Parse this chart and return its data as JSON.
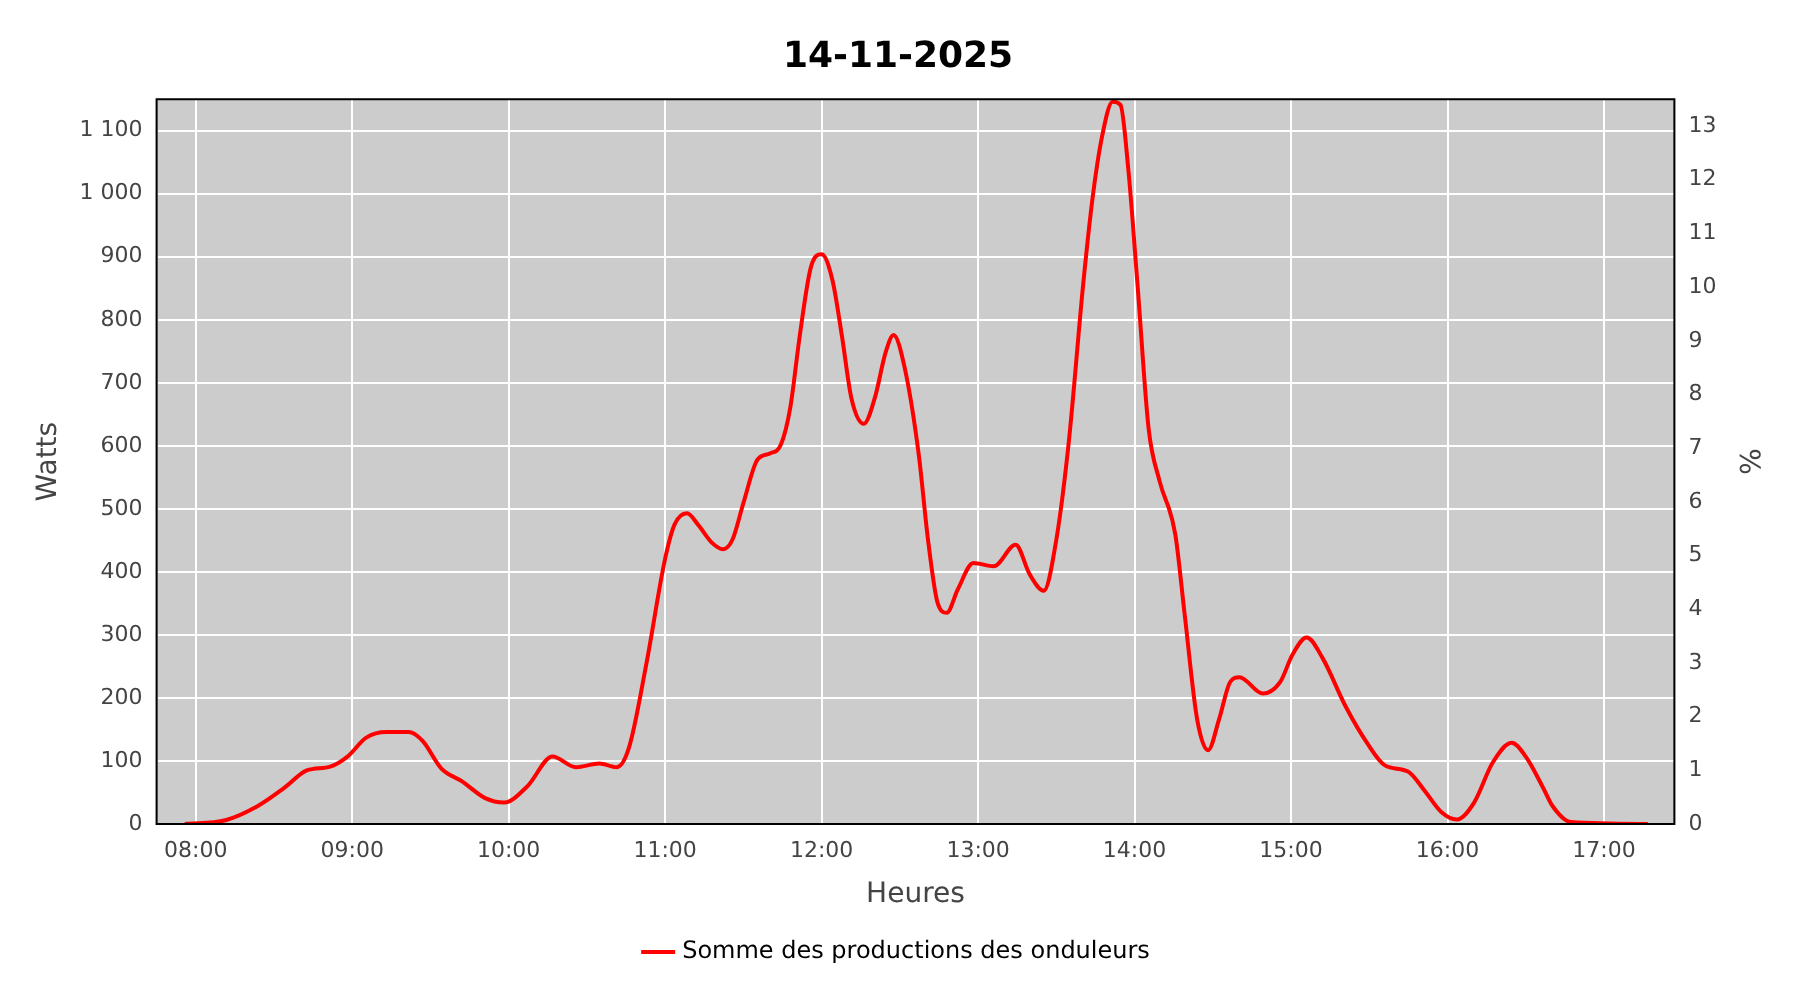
{
  "chart_data": {
    "type": "line",
    "title": "14-11-2025",
    "xlabel": "Heures",
    "ylabel": "Watts",
    "y2label": "%",
    "x": [
      7.93,
      8.19,
      8.4,
      8.57,
      8.71,
      8.86,
      8.97,
      9.09,
      9.22,
      9.36,
      9.45,
      9.57,
      9.7,
      9.85,
      9.97,
      10.12,
      10.28,
      10.43,
      10.58,
      10.69,
      10.77,
      10.88,
      11.0,
      11.06,
      11.14,
      11.21,
      11.3,
      11.37,
      11.43,
      11.5,
      11.59,
      11.67,
      11.74,
      11.8,
      11.86,
      11.93,
      12.0,
      12.07,
      12.13,
      12.19,
      12.27,
      12.34,
      12.41,
      12.46,
      12.53,
      12.62,
      12.68,
      12.74,
      12.8,
      12.87,
      12.97,
      13.1,
      13.24,
      13.33,
      13.42,
      13.5,
      13.58,
      13.67,
      13.73,
      13.79,
      13.86,
      13.91,
      13.96,
      14.02,
      14.09,
      14.16,
      14.26,
      14.32,
      14.4,
      14.47,
      14.54,
      14.61,
      14.67,
      14.82,
      14.93,
      15.01,
      15.1,
      15.2,
      15.35,
      15.49,
      15.6,
      15.75,
      15.85,
      15.96,
      16.06,
      16.17,
      16.29,
      16.41,
      16.5,
      16.61,
      16.67,
      16.79,
      17.28
    ],
    "series": [
      {
        "name": "Somme des productions des onduleurs",
        "color": "#ff0000",
        "values": [
          0,
          6,
          29,
          58,
          85,
          91,
          107,
          137,
          146,
          146,
          132,
          88,
          68,
          41,
          34,
          60,
          107,
          90,
          96,
          90,
          122,
          254,
          421,
          475,
          493,
          475,
          446,
          436,
          451,
          509,
          578,
          588,
          602,
          661,
          774,
          882,
          904,
          862,
          774,
          676,
          635,
          676,
          749,
          776,
          725,
          588,
          451,
          352,
          335,
          372,
          414,
          409,
          443,
          396,
          370,
          451,
          607,
          852,
          990,
          1088,
          1146,
          1141,
          1039,
          852,
          627,
          544,
          460,
          333,
          166,
          117,
          166,
          225,
          233,
          207,
          225,
          269,
          296,
          264,
          186,
          127,
          93,
          83,
          54,
          19,
          7,
          34,
          98,
          129,
          107,
          58,
          29,
          3,
          0
        ]
      }
    ],
    "xlim": [
      7.75,
      17.45
    ],
    "xticks": [
      {
        "value": 8,
        "label": "08:00"
      },
      {
        "value": 9,
        "label": "09:00"
      },
      {
        "value": 10,
        "label": "10:00"
      },
      {
        "value": 11,
        "label": "11:00"
      },
      {
        "value": 12,
        "label": "12:00"
      },
      {
        "value": 13,
        "label": "13:00"
      },
      {
        "value": 14,
        "label": "14:00"
      },
      {
        "value": 15,
        "label": "15:00"
      },
      {
        "value": 16,
        "label": "16:00"
      },
      {
        "value": 17,
        "label": "17:00"
      }
    ],
    "ylim": [
      0,
      1150
    ],
    "yticks": [
      0,
      100,
      200,
      300,
      400,
      500,
      600,
      700,
      800,
      900,
      {
        "value": 1000,
        "label": "1 000"
      },
      {
        "value": 1100,
        "label": "1 100"
      }
    ],
    "y2lim": [
      0,
      13.5
    ],
    "y2ticks": [
      0,
      1,
      2,
      3,
      4,
      5,
      6,
      7,
      8,
      9,
      10,
      11,
      12,
      13
    ],
    "grid": true,
    "legend": "bottom"
  }
}
